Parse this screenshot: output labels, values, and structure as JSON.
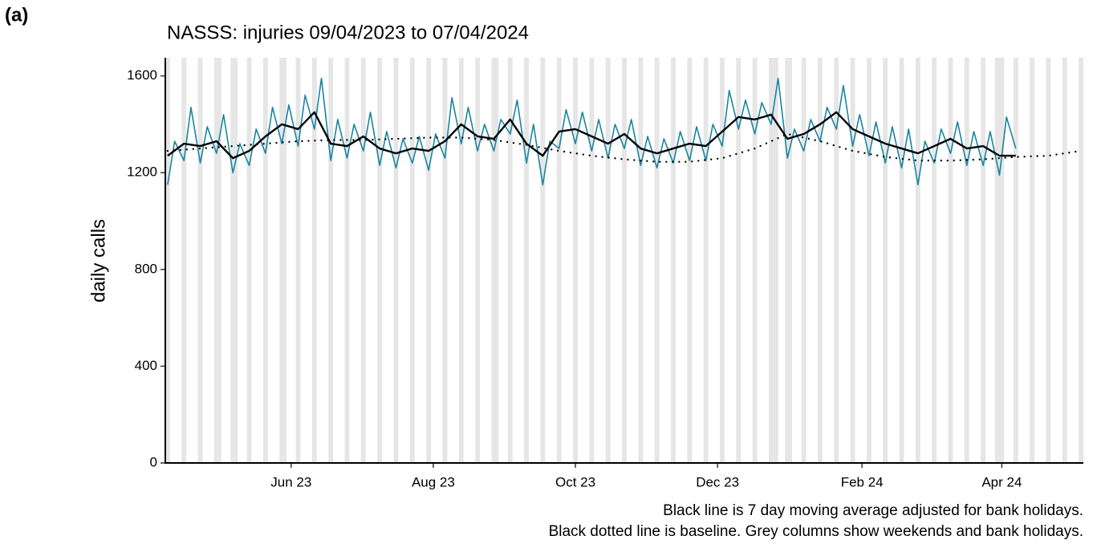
{
  "chart_data": {
    "type": "line",
    "panel_label": "(a)",
    "title": "NASSS: injuries 09/04/2023 to 07/04/2024",
    "y_label": "daily calls",
    "notes": [
      "Black line is 7 day moving average adjusted for bank holidays.",
      "Black dotted line is baseline. Grey columns show weekends and bank holidays."
    ],
    "xlim": [
      "2023-04-08",
      "2024-05-06"
    ],
    "xticks": [
      {
        "value": "2023-06-01",
        "label": "Jun 23"
      },
      {
        "value": "2023-08-01",
        "label": "Aug 23"
      },
      {
        "value": "2023-10-01",
        "label": "Oct 23"
      },
      {
        "value": "2023-12-01",
        "label": "Dec 23"
      },
      {
        "value": "2024-02-01",
        "label": "Feb 24"
      },
      {
        "value": "2024-04-01",
        "label": "Apr 24"
      }
    ],
    "ylim": [
      0,
      1675
    ],
    "yticks": [
      0,
      400,
      800,
      1200,
      1600
    ],
    "shading_color": "#e5e5e5",
    "bank_holidays": [
      "2023-05-01",
      "2023-05-08",
      "2023-05-29",
      "2023-08-28",
      "2023-12-25",
      "2023-12-26",
      "2024-01-01",
      "2024-03-29",
      "2024-04-01"
    ],
    "series": [
      {
        "color": "#1a85a0",
        "style": "solid",
        "width": 1.6,
        "x": [
          "2023-04-09",
          "2023-04-12",
          "2023-04-16",
          "2023-04-19",
          "2023-04-23",
          "2023-04-26",
          "2023-04-30",
          "2023-05-03",
          "2023-05-07",
          "2023-05-10",
          "2023-05-14",
          "2023-05-17",
          "2023-05-21",
          "2023-05-24",
          "2023-05-28",
          "2023-05-31",
          "2023-06-04",
          "2023-06-07",
          "2023-06-11",
          "2023-06-14",
          "2023-06-18",
          "2023-06-21",
          "2023-06-25",
          "2023-06-28",
          "2023-07-02",
          "2023-07-05",
          "2023-07-09",
          "2023-07-12",
          "2023-07-16",
          "2023-07-19",
          "2023-07-23",
          "2023-07-26",
          "2023-07-30",
          "2023-08-02",
          "2023-08-06",
          "2023-08-09",
          "2023-08-13",
          "2023-08-16",
          "2023-08-20",
          "2023-08-23",
          "2023-08-27",
          "2023-08-30",
          "2023-09-03",
          "2023-09-06",
          "2023-09-10",
          "2023-09-13",
          "2023-09-17",
          "2023-09-20",
          "2023-09-24",
          "2023-09-27",
          "2023-10-01",
          "2023-10-04",
          "2023-10-08",
          "2023-10-11",
          "2023-10-15",
          "2023-10-18",
          "2023-10-22",
          "2023-10-25",
          "2023-10-29",
          "2023-11-01",
          "2023-11-05",
          "2023-11-08",
          "2023-11-12",
          "2023-11-15",
          "2023-11-19",
          "2023-11-22",
          "2023-11-26",
          "2023-11-29",
          "2023-12-03",
          "2023-12-06",
          "2023-12-10",
          "2023-12-13",
          "2023-12-17",
          "2023-12-20",
          "2023-12-24",
          "2023-12-27",
          "2023-12-31",
          "2024-01-03",
          "2024-01-07",
          "2024-01-10",
          "2024-01-14",
          "2024-01-17",
          "2024-01-21",
          "2024-01-24",
          "2024-01-28",
          "2024-01-31",
          "2024-02-04",
          "2024-02-07",
          "2024-02-11",
          "2024-02-14",
          "2024-02-18",
          "2024-02-21",
          "2024-02-25",
          "2024-02-28",
          "2024-03-03",
          "2024-03-06",
          "2024-03-10",
          "2024-03-13",
          "2024-03-17",
          "2024-03-20",
          "2024-03-24",
          "2024-03-27",
          "2024-03-31",
          "2024-04-03",
          "2024-04-07"
        ],
        "values": [
          1150,
          1330,
          1250,
          1470,
          1240,
          1390,
          1280,
          1440,
          1200,
          1320,
          1230,
          1380,
          1280,
          1470,
          1320,
          1480,
          1310,
          1520,
          1380,
          1590,
          1250,
          1420,
          1260,
          1400,
          1290,
          1450,
          1230,
          1370,
          1220,
          1340,
          1240,
          1350,
          1210,
          1360,
          1260,
          1510,
          1320,
          1470,
          1290,
          1400,
          1290,
          1420,
          1360,
          1500,
          1240,
          1400,
          1150,
          1330,
          1300,
          1460,
          1320,
          1450,
          1290,
          1420,
          1260,
          1400,
          1300,
          1420,
          1230,
          1350,
          1220,
          1340,
          1240,
          1370,
          1250,
          1390,
          1250,
          1400,
          1310,
          1540,
          1380,
          1500,
          1360,
          1490,
          1400,
          1590,
          1260,
          1380,
          1290,
          1420,
          1330,
          1470,
          1380,
          1560,
          1310,
          1440,
          1270,
          1410,
          1240,
          1390,
          1220,
          1380,
          1150,
          1330,
          1240,
          1380,
          1280,
          1410,
          1230,
          1370,
          1230,
          1370,
          1190,
          1430,
          1300
        ]
      },
      {
        "color": "#000000",
        "style": "solid",
        "width": 2.4,
        "x": [
          "2023-04-09",
          "2023-04-16",
          "2023-04-23",
          "2023-04-30",
          "2023-05-07",
          "2023-05-14",
          "2023-05-21",
          "2023-05-28",
          "2023-06-04",
          "2023-06-11",
          "2023-06-18",
          "2023-06-25",
          "2023-07-02",
          "2023-07-09",
          "2023-07-16",
          "2023-07-23",
          "2023-07-30",
          "2023-08-06",
          "2023-08-13",
          "2023-08-20",
          "2023-08-27",
          "2023-09-03",
          "2023-09-10",
          "2023-09-17",
          "2023-09-24",
          "2023-10-01",
          "2023-10-08",
          "2023-10-15",
          "2023-10-22",
          "2023-10-29",
          "2023-11-05",
          "2023-11-12",
          "2023-11-19",
          "2023-11-26",
          "2023-12-03",
          "2023-12-10",
          "2023-12-17",
          "2023-12-24",
          "2023-12-31",
          "2024-01-07",
          "2024-01-14",
          "2024-01-21",
          "2024-01-28",
          "2024-02-04",
          "2024-02-11",
          "2024-02-18",
          "2024-02-25",
          "2024-03-03",
          "2024-03-10",
          "2024-03-17",
          "2024-03-24",
          "2024-03-31",
          "2024-04-07"
        ],
        "values": [
          1270,
          1320,
          1310,
          1330,
          1260,
          1290,
          1350,
          1400,
          1380,
          1450,
          1320,
          1310,
          1350,
          1300,
          1280,
          1300,
          1290,
          1330,
          1400,
          1350,
          1340,
          1420,
          1320,
          1270,
          1370,
          1380,
          1350,
          1320,
          1360,
          1300,
          1280,
          1300,
          1320,
          1310,
          1370,
          1430,
          1420,
          1440,
          1340,
          1360,
          1400,
          1450,
          1380,
          1350,
          1320,
          1300,
          1280,
          1310,
          1340,
          1300,
          1310,
          1270,
          1270
        ]
      },
      {
        "color": "#000000",
        "style": "dotted",
        "width": 2.4,
        "x": [
          "2023-04-09",
          "2023-04-23",
          "2023-05-07",
          "2023-05-21",
          "2023-06-04",
          "2023-06-18",
          "2023-07-02",
          "2023-07-16",
          "2023-07-30",
          "2023-08-13",
          "2023-08-27",
          "2023-09-10",
          "2023-09-24",
          "2023-10-08",
          "2023-10-22",
          "2023-11-05",
          "2023-11-19",
          "2023-12-03",
          "2023-12-17",
          "2023-12-31",
          "2024-01-14",
          "2024-01-28",
          "2024-02-11",
          "2024-02-25",
          "2024-03-10",
          "2024-03-24",
          "2024-04-07",
          "2024-04-21",
          "2024-05-05"
        ],
        "values": [
          1290,
          1300,
          1310,
          1320,
          1330,
          1335,
          1335,
          1340,
          1345,
          1345,
          1335,
          1315,
          1290,
          1270,
          1255,
          1245,
          1245,
          1260,
          1300,
          1360,
          1330,
          1290,
          1265,
          1250,
          1250,
          1255,
          1265,
          1270,
          1290
        ]
      }
    ]
  }
}
